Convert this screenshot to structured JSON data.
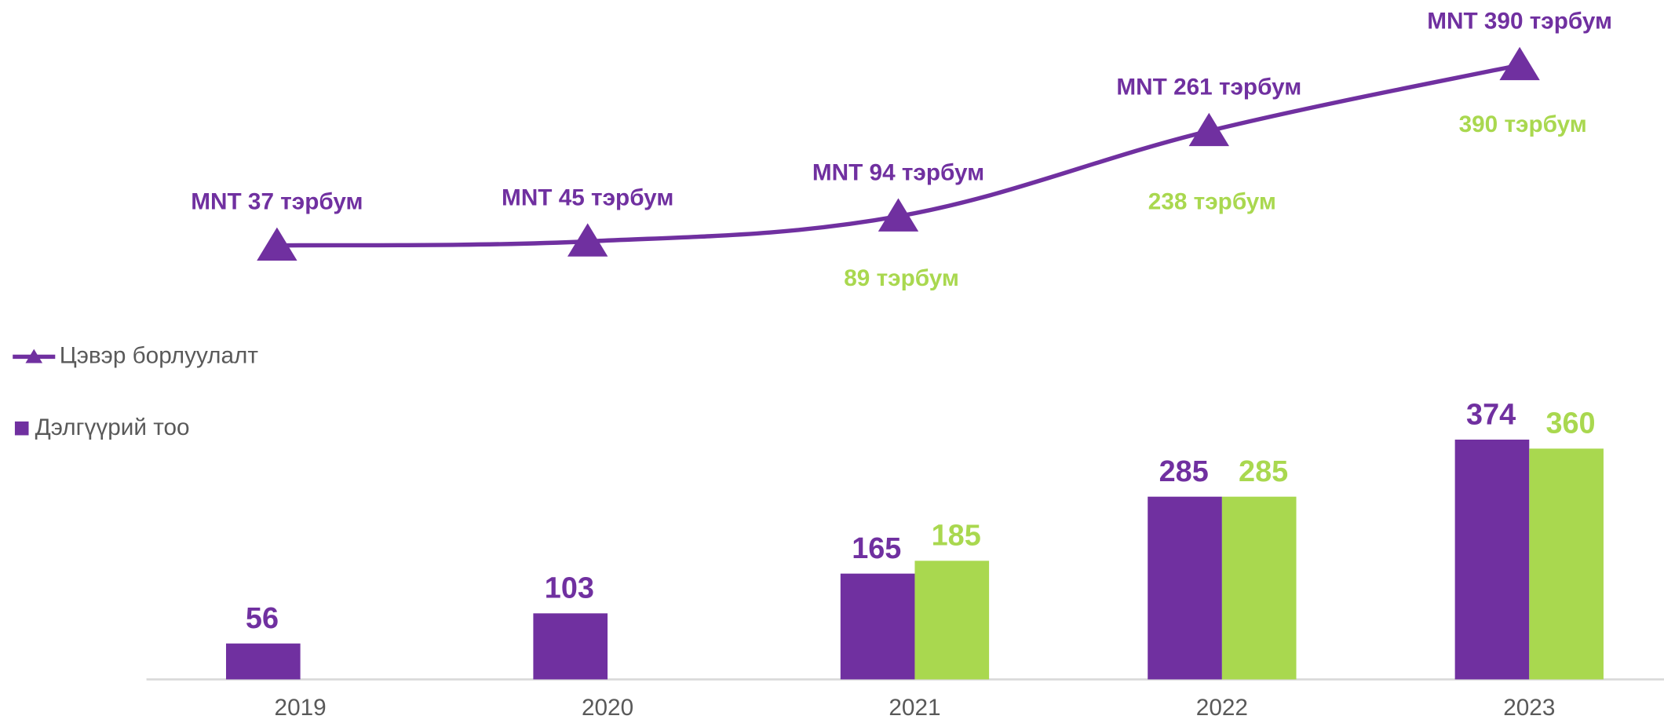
{
  "chart_data": [
    {
      "type": "line",
      "series": [
        {
          "name": "Цэвэр борлуулалт",
          "color": "#7030a0",
          "marker": "triangle",
          "values": [
            37,
            45,
            94,
            261,
            390
          ],
          "value_labels": [
            "MNT 37 тэрбум",
            "MNT 45 тэрбум",
            "MNT 94 тэрбум",
            "MNT 261 тэрбум",
            "MNT 390 тэрбум"
          ]
        },
        {
          "color": "#a9d84f",
          "values": [
            null,
            null,
            89,
            238,
            390
          ],
          "value_labels": [
            null,
            null,
            "89 тэрбум",
            "238 тэрбум",
            "390 тэрбум"
          ]
        }
      ]
    },
    {
      "type": "bar",
      "categories": [
        "2019",
        "2020",
        "2021",
        "2022",
        "2023"
      ],
      "series": [
        {
          "name": "Дэлгүүрий тоо",
          "color": "#7030a0",
          "values": [
            56,
            103,
            165,
            285,
            374
          ]
        },
        {
          "color": "#a9d84f",
          "values": [
            null,
            null,
            185,
            285,
            360
          ]
        }
      ]
    }
  ]
}
